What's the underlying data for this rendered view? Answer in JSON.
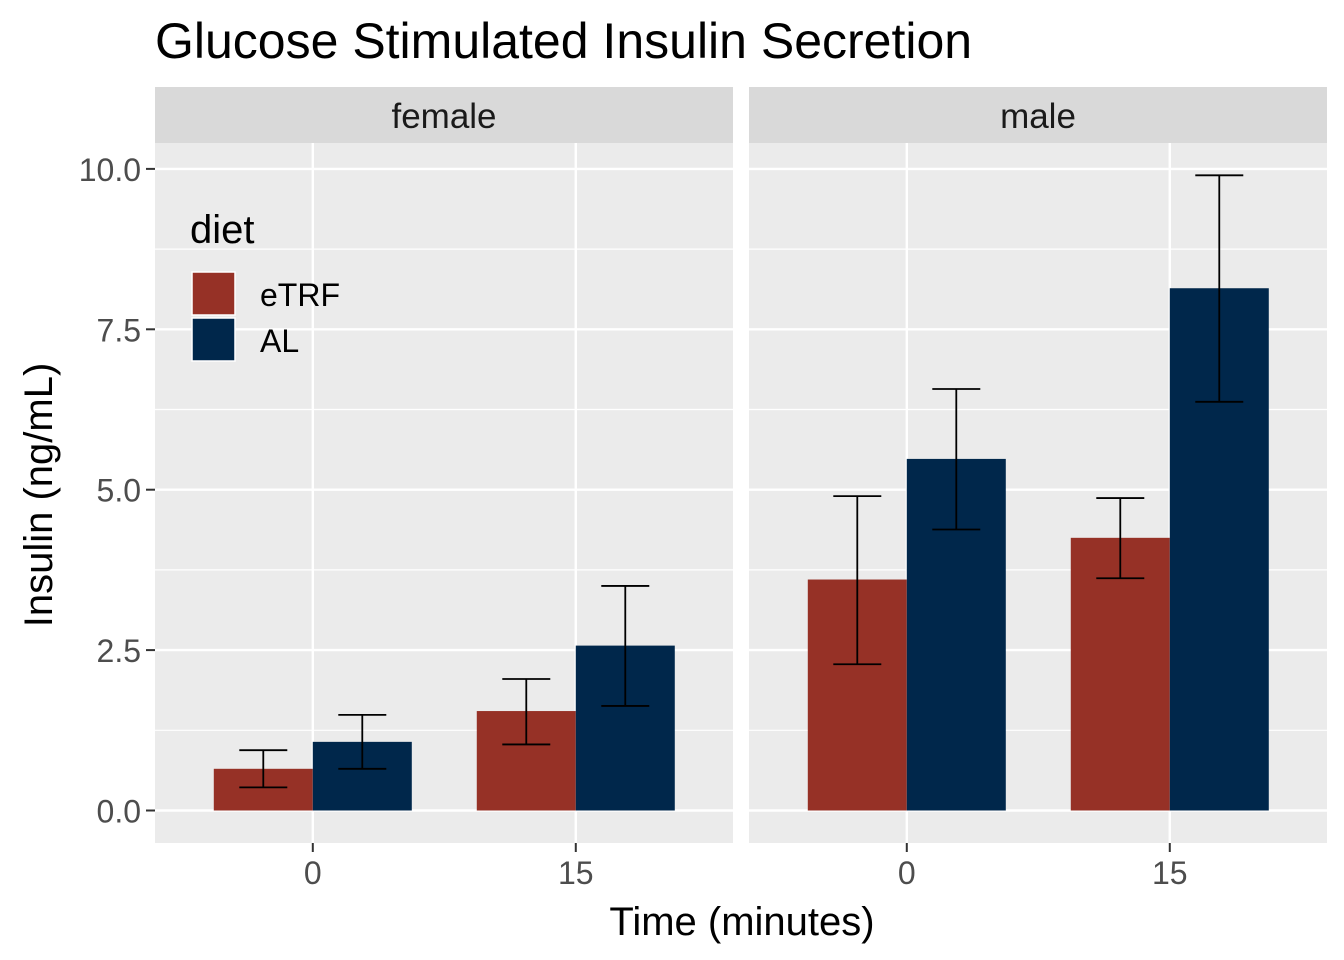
{
  "chart_data": {
    "type": "bar",
    "title": "Glucose Stimulated Insulin Secretion",
    "xlabel": "Time (minutes)",
    "ylabel": "Insulin (ng/mL)",
    "ylim": [
      -0.5,
      11.0
    ],
    "yticks": [
      "0.0",
      "2.5",
      "5.0",
      "7.5",
      "10.0"
    ],
    "ytick_values": [
      0,
      2.5,
      5,
      7.5,
      10
    ],
    "categories": [
      "0",
      "15"
    ],
    "grid": true,
    "legend": {
      "title": "diet",
      "placement": "top-left inside first panel",
      "entries": [
        "eTRF",
        "AL"
      ]
    },
    "colors": {
      "eTRF": "#963126",
      "AL": "#00274b"
    },
    "panels": [
      {
        "facet": "female",
        "series": [
          {
            "name": "eTRF",
            "values": [
              0.65,
              1.55
            ],
            "err_low": [
              0.36,
              1.03
            ],
            "err_high": [
              0.94,
              2.05
            ]
          },
          {
            "name": "AL",
            "values": [
              1.07,
              2.57
            ],
            "err_low": [
              0.65,
              1.63
            ],
            "err_high": [
              1.49,
              3.5
            ]
          }
        ]
      },
      {
        "facet": "male",
        "series": [
          {
            "name": "eTRF",
            "values": [
              3.6,
              4.25
            ],
            "err_low": [
              2.28,
              3.62
            ],
            "err_high": [
              4.9,
              4.87
            ]
          },
          {
            "name": "AL",
            "values": [
              5.48,
              8.14
            ],
            "err_low": [
              4.38,
              6.37
            ],
            "err_high": [
              6.57,
              9.9
            ]
          }
        ]
      }
    ]
  }
}
